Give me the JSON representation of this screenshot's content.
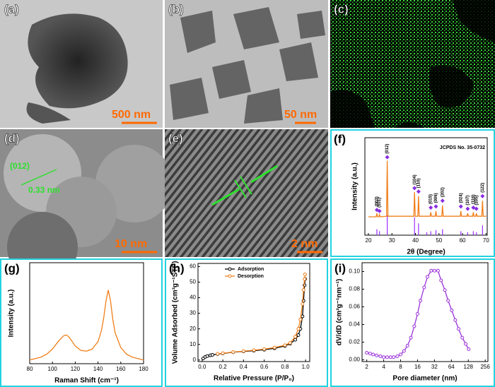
{
  "panels": [
    {
      "label": "(a)",
      "scale_bar": "500 nm"
    },
    {
      "label": "(b)",
      "scale_bar": "50 nm"
    },
    {
      "label": "(c)"
    },
    {
      "label": "(d)",
      "scale_bar": "10 nm",
      "annotations": [
        "(012)",
        "0.33 nm"
      ]
    },
    {
      "label": "(e)",
      "scale_bar": "2 nm"
    }
  ],
  "chart_data": [
    {
      "type": "xrd",
      "panel": "(f)",
      "xlabel": "2θ (Degree)",
      "ylabel": "Intensity (a.u.)",
      "annotation": "JCPDS No. 35-0732",
      "x": [
        20,
        23.3,
        23.6,
        23.9,
        24.4,
        24.7,
        25,
        27.7,
        28,
        28.3,
        39.3,
        39.6,
        39.9,
        41,
        41.3,
        41.6,
        46.2,
        46.5,
        46.8,
        48.4,
        48.7,
        49,
        51.2,
        51.5,
        51.8,
        59,
        59.3,
        59.6,
        61.9,
        62.2,
        62.5,
        64.3,
        64.6,
        64.9,
        65.6,
        65.9,
        66.2,
        68.2,
        68.5,
        68.8,
        70
      ],
      "values": [
        2,
        2,
        8,
        2,
        2,
        6,
        2,
        3,
        100,
        3,
        3,
        45,
        3,
        3,
        38,
        3,
        3,
        10,
        3,
        3,
        12,
        3,
        3,
        22,
        3,
        3,
        12,
        3,
        3,
        8,
        3,
        3,
        10,
        3,
        3,
        8,
        3,
        3,
        30,
        3,
        3
      ],
      "color": "#f07f1a",
      "xlim": [
        18.5,
        70.5
      ],
      "ylim": [
        -30,
        140
      ],
      "xticks": [
        20,
        30,
        40,
        50,
        60,
        70
      ],
      "reference": {
        "x": [
          23.6,
          24.7,
          28,
          39.6,
          41.3,
          44.8,
          46.5,
          48.7,
          51.5,
          59.3,
          62.2,
          64.6,
          65.9,
          68.5
        ],
        "values": [
          30,
          20,
          100,
          90,
          60,
          15,
          20,
          25,
          30,
          20,
          15,
          20,
          15,
          50
        ],
        "color": "#9b30ff",
        "ylim": [
          0,
          100
        ]
      },
      "peak_labels": {
        "x": [
          23.6,
          24.7,
          28,
          39.6,
          41.3,
          46.5,
          48.7,
          51.5,
          59.3,
          62.2,
          64.6,
          65.9,
          68.5
        ],
        "y": [
          14,
          12,
          106,
          52,
          46,
          18,
          20,
          30,
          20,
          16,
          18,
          16,
          38
        ],
        "labels": [
          "(003)",
          "(101)",
          "(012)",
          "(104)",
          "(110)",
          "(015)",
          "(006)",
          "(202)",
          "(024)",
          "(107)",
          "(116)",
          "(205)",
          "(122)"
        ],
        "color": "#8a2be2"
      }
    },
    {
      "type": "line",
      "panel": "(g)",
      "xlabel": "Raman Shift (cm⁻¹)",
      "ylabel": "Intensity (a.u.)",
      "x": [
        80,
        85,
        90,
        95,
        100,
        105,
        108,
        110,
        112,
        114,
        116,
        120,
        125,
        130,
        135,
        140,
        143,
        145,
        147,
        149,
        151,
        153,
        155,
        160,
        165,
        170,
        175,
        180
      ],
      "values": [
        5,
        7,
        9,
        13,
        20,
        30,
        35,
        38,
        39,
        37,
        33,
        24,
        18,
        17,
        20,
        30,
        45,
        62,
        85,
        100,
        85,
        60,
        42,
        22,
        13,
        9,
        7,
        5
      ],
      "color": "#f07f1a",
      "xlim": [
        80,
        180
      ],
      "ylim": [
        0,
        137
      ],
      "xticks": [
        80,
        100,
        120,
        140,
        160,
        180
      ]
    },
    {
      "type": "line",
      "panel": "(h)",
      "xlabel": "Relative Pressure (P/P₀)",
      "ylabel": "Volume Adsorbed (cm³g⁻¹STP)",
      "series": [
        {
          "name": "Adsorption",
          "color": "#000000",
          "x": [
            0.01,
            0.03,
            0.05,
            0.08,
            0.1,
            0.15,
            0.2,
            0.3,
            0.4,
            0.5,
            0.6,
            0.7,
            0.8,
            0.85,
            0.9,
            0.93,
            0.95,
            0.97,
            0.98,
            0.99,
            0.995
          ],
          "values": [
            1,
            2,
            2.5,
            3,
            3.3,
            3.8,
            4.2,
            5,
            5.5,
            6,
            6.6,
            7.5,
            9,
            10.5,
            13,
            16,
            20,
            28,
            38,
            48,
            52
          ]
        },
        {
          "name": "Desorption",
          "color": "#f07f1a",
          "x": [
            0.995,
            0.99,
            0.98,
            0.97,
            0.95,
            0.93,
            0.9,
            0.85,
            0.8,
            0.7,
            0.6,
            0.5,
            0.4,
            0.3,
            0.2,
            0.15
          ],
          "values": [
            55,
            52,
            45,
            36,
            26,
            20,
            15,
            11,
            9.5,
            8,
            7,
            6.3,
            5.7,
            5.1,
            4.4,
            4
          ]
        }
      ],
      "xlim": [
        -0.04,
        1.04
      ],
      "ylim": [
        -1,
        62
      ],
      "xticks": [
        {
          "value": 0,
          "label": "0.0"
        },
        0.2,
        0.4,
        0.6,
        0.8,
        {
          "value": 1,
          "label": "1.0"
        }
      ],
      "yticks": [
        0,
        10,
        20,
        30,
        40,
        50,
        60
      ],
      "markers": true,
      "legend": "top-left"
    },
    {
      "type": "line",
      "panel": "(i)",
      "xlabel": "Pore diameter (nm)",
      "ylabel": "dV/dD (cm³g⁻¹nm⁻¹)",
      "log_x": true,
      "x": [
        2,
        2.3,
        2.6,
        3,
        3.5,
        4,
        4.6,
        5.3,
        6,
        7,
        8,
        9.2,
        10.6,
        12.2,
        14,
        16,
        18,
        21,
        24,
        28,
        32,
        37,
        42,
        49,
        56,
        65,
        75,
        86,
        100,
        115,
        130
      ],
      "values": [
        0.008,
        0.007,
        0.006,
        0.005,
        0.004,
        0.003,
        0.003,
        0.003,
        0.003,
        0.004,
        0.006,
        0.01,
        0.016,
        0.025,
        0.038,
        0.052,
        0.067,
        0.082,
        0.094,
        0.101,
        0.101,
        0.101,
        0.09,
        0.079,
        0.067,
        0.056,
        0.045,
        0.035,
        0.025,
        0.018,
        0.012
      ],
      "color": "#9b30d9",
      "markers": true,
      "xlim": [
        1.65,
        286
      ],
      "ylim": [
        -0.002,
        0.11
      ],
      "xticks": [
        2,
        4,
        8,
        16,
        32,
        64,
        128,
        256
      ],
      "yticks": [
        {
          "value": 0,
          "label": "0.00"
        },
        {
          "value": 0.02,
          "label": "0.02"
        },
        {
          "value": 0.04,
          "label": "0.04"
        },
        {
          "value": 0.06,
          "label": "0.06"
        },
        {
          "value": 0.08,
          "label": "0.08"
        },
        {
          "value": 0.1,
          "label": "0.10"
        }
      ]
    }
  ]
}
